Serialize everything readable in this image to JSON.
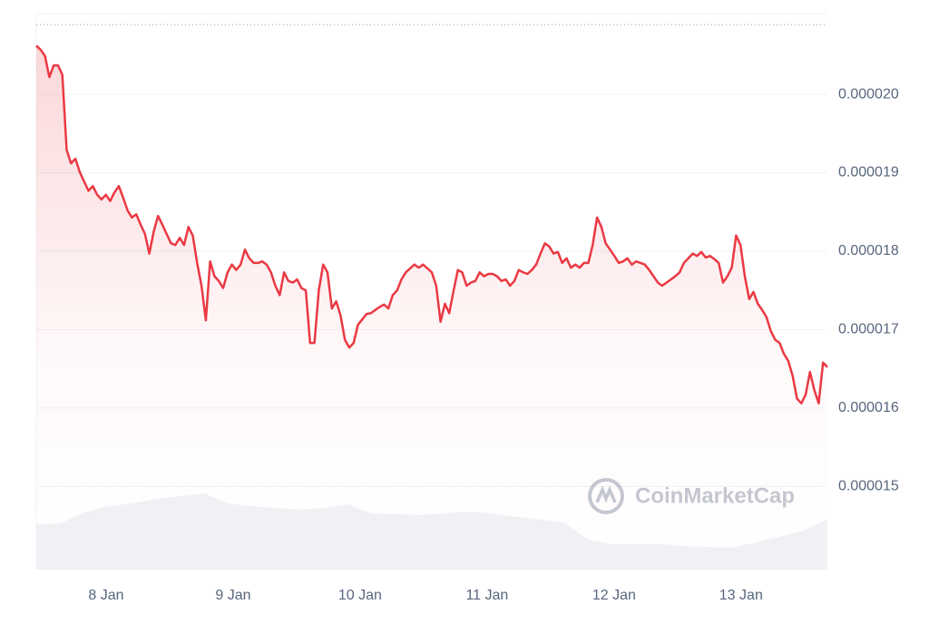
{
  "chart_data": {
    "type": "line",
    "watermark": "CoinMarketCap",
    "xlim": [
      7.45,
      13.68
    ],
    "xticks": [
      {
        "value": 8,
        "label": "8 Jan"
      },
      {
        "value": 9,
        "label": "9 Jan"
      },
      {
        "value": 10,
        "label": "10 Jan"
      },
      {
        "value": 11,
        "label": "11 Jan"
      },
      {
        "value": 12,
        "label": "12 Jan"
      },
      {
        "value": 13,
        "label": "13 Jan"
      }
    ],
    "ylim": [
      1.394e-05,
      2.103e-05
    ],
    "yticks": [
      {
        "value": 2e-05,
        "label": "0.000020"
      },
      {
        "value": 1.9e-05,
        "label": "0.000019"
      },
      {
        "value": 1.8e-05,
        "label": "0.000018"
      },
      {
        "value": 1.7e-05,
        "label": "0.000017"
      },
      {
        "value": 1.6e-05,
        "label": "0.000016"
      },
      {
        "value": 1.5e-05,
        "label": "0.000015"
      }
    ],
    "grid": true,
    "max_line": 2.089e-05,
    "y2lim": [
      0,
      100
    ],
    "series": [
      {
        "color": "#ea3943",
        "values": [
          2.062e-05,
          2.057e-05,
          2.049e-05,
          2.022e-05,
          2.037e-05,
          2.037e-05,
          2.025e-05,
          1.929e-05,
          1.912e-05,
          1.918e-05,
          1.901e-05,
          1.889e-05,
          1.877e-05,
          1.883e-05,
          1.872e-05,
          1.866e-05,
          1.872e-05,
          1.864e-05,
          1.875e-05,
          1.883e-05,
          1.868e-05,
          1.852e-05,
          1.843e-05,
          1.847e-05,
          1.834e-05,
          1.822e-05,
          1.797e-05,
          1.825e-05,
          1.845e-05,
          1.834e-05,
          1.822e-05,
          1.81e-05,
          1.808e-05,
          1.817e-05,
          1.808e-05,
          1.831e-05,
          1.82e-05,
          1.785e-05,
          1.756e-05,
          1.712e-05,
          1.787e-05,
          1.768e-05,
          1.762e-05,
          1.753e-05,
          1.773e-05,
          1.783e-05,
          1.776e-05,
          1.783e-05,
          1.802e-05,
          1.791e-05,
          1.785e-05,
          1.785e-05,
          1.787e-05,
          1.783e-05,
          1.773e-05,
          1.756e-05,
          1.744e-05,
          1.773e-05,
          1.762e-05,
          1.76e-05,
          1.764e-05,
          1.753e-05,
          1.75e-05,
          1.683e-05,
          1.683e-05,
          1.75e-05,
          1.783e-05,
          1.773e-05,
          1.727e-05,
          1.736e-05,
          1.718e-05,
          1.687e-05,
          1.677e-05,
          1.683e-05,
          1.706e-05,
          1.713e-05,
          1.72e-05,
          1.721e-05,
          1.725e-05,
          1.729e-05,
          1.732e-05,
          1.727e-05,
          1.744e-05,
          1.75e-05,
          1.764e-05,
          1.773e-05,
          1.778e-05,
          1.783e-05,
          1.779e-05,
          1.783e-05,
          1.778e-05,
          1.773e-05,
          1.756e-05,
          1.71e-05,
          1.733e-05,
          1.721e-05,
          1.75e-05,
          1.776e-05,
          1.773e-05,
          1.756e-05,
          1.76e-05,
          1.762e-05,
          1.773e-05,
          1.768e-05,
          1.771e-05,
          1.771e-05,
          1.768e-05,
          1.762e-05,
          1.764e-05,
          1.756e-05,
          1.762e-05,
          1.776e-05,
          1.773e-05,
          1.771e-05,
          1.776e-05,
          1.783e-05,
          1.797e-05,
          1.81e-05,
          1.806e-05,
          1.797e-05,
          1.799e-05,
          1.785e-05,
          1.791e-05,
          1.779e-05,
          1.783e-05,
          1.779e-05,
          1.785e-05,
          1.785e-05,
          1.808e-05,
          1.843e-05,
          1.831e-05,
          1.81e-05,
          1.802e-05,
          1.794e-05,
          1.785e-05,
          1.787e-05,
          1.791e-05,
          1.783e-05,
          1.787e-05,
          1.785e-05,
          1.783e-05,
          1.776e-05,
          1.768e-05,
          1.76e-05,
          1.756e-05,
          1.76e-05,
          1.764e-05,
          1.768e-05,
          1.773e-05,
          1.785e-05,
          1.791e-05,
          1.797e-05,
          1.794e-05,
          1.799e-05,
          1.792e-05,
          1.794e-05,
          1.79e-05,
          1.785e-05,
          1.76e-05,
          1.768e-05,
          1.779e-05,
          1.82e-05,
          1.808e-05,
          1.768e-05,
          1.739e-05,
          1.748e-05,
          1.733e-05,
          1.725e-05,
          1.716e-05,
          1.698e-05,
          1.687e-05,
          1.683e-05,
          1.669e-05,
          1.66e-05,
          1.641e-05,
          1.612e-05,
          1.606e-05,
          1.617e-05,
          1.646e-05,
          1.623e-05,
          1.606e-05,
          1.658e-05,
          1.652e-05
        ]
      },
      {
        "axis": "y2",
        "color": "#eff1f4",
        "values": [
          8.2,
          8.3,
          10.3,
          11.4,
          11.9,
          12.7,
          13.2,
          13.7,
          11.9,
          11.4,
          11.1,
          10.8,
          11.1,
          11.7,
          10.1,
          10.0,
          9.8,
          10.1,
          10.4,
          10.1,
          9.5,
          9.0,
          8.5,
          5.4,
          4.6,
          4.6,
          4.6,
          4.2,
          4.1,
          3.9,
          4.9,
          5.9,
          7.0,
          9.1
        ]
      }
    ]
  }
}
